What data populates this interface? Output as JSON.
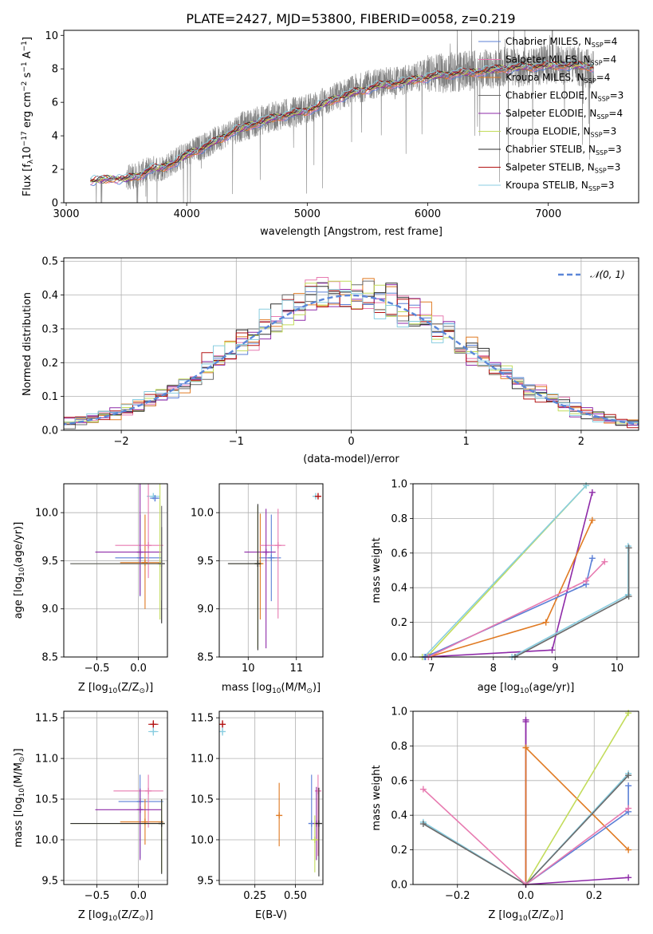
{
  "title": "PLATE=2427, MJD=53800, FIBERID=0058, z=0.219",
  "colors": {
    "chabrier_miles": "#5b7fd6",
    "salpeter_miles": "#e77ab0",
    "kroupa_miles": "#e07a22",
    "chabrier_elodie": "#6b6b6b",
    "salpeter_elodie": "#8e2aa8",
    "kroupa_elodie": "#c2dc5a",
    "chabrier_stelib": "#2e2e2e",
    "salpeter_stelib": "#b31313",
    "kroupa_stelib": "#88cde0",
    "data": "#808080",
    "normal": "#5b86d8"
  },
  "chart_data": [
    {
      "id": "spectrum",
      "type": "line",
      "title": "PLATE=2427, MJD=53800, FIBERID=0058, z=0.219",
      "xlabel": "wavelength [Angstrom, rest frame]",
      "ylabel_parts": [
        "Flux [f",
        "λ",
        "10",
        "−17",
        " erg cm",
        "−2",
        " s",
        "−1",
        " A",
        "−1",
        "]"
      ],
      "xlim": [
        2980,
        7750
      ],
      "ylim": [
        0,
        10.3
      ],
      "xticks": [
        3000,
        4000,
        5000,
        6000,
        7000
      ],
      "yticks": [
        0,
        2,
        4,
        6,
        8,
        10
      ],
      "legend_placement": "right",
      "legend": [
        {
          "label": "Chabrier MILES, N",
          "sub": "SSP",
          "tail": "=4",
          "color": "#5b7fd6"
        },
        {
          "label": "Salpeter MILES, N",
          "sub": "SSP",
          "tail": "=4",
          "color": "#e77ab0"
        },
        {
          "label": "Kroupa MILES, N",
          "sub": "SSP",
          "tail": "=4",
          "color": "#e07a22"
        },
        {
          "label": "Chabrier ELODIE, N",
          "sub": "SSP",
          "tail": "=3",
          "color": "#6b6b6b"
        },
        {
          "label": "Salpeter ELODIE, N",
          "sub": "SSP",
          "tail": "=4",
          "color": "#8e2aa8"
        },
        {
          "label": "Kroupa ELODIE, N",
          "sub": "SSP",
          "tail": "=3",
          "color": "#c2dc5a"
        },
        {
          "label": "Chabrier STELIB, N",
          "sub": "SSP",
          "tail": "=3",
          "color": "#2e2e2e"
        },
        {
          "label": "Salpeter STELIB, N",
          "sub": "SSP",
          "tail": "=3",
          "color": "#b31313"
        },
        {
          "label": "Kroupa STELIB, N",
          "sub": "SSP",
          "tail": "=3",
          "color": "#88cde0"
        }
      ],
      "data_continuum": {
        "x": [
          3200,
          3400,
          3500,
          3600,
          3700,
          3800,
          3900,
          4000,
          4200,
          4400,
          4600,
          4800,
          5000,
          5200,
          5400,
          5600,
          5800,
          6000,
          6200,
          6400,
          6600,
          6800,
          7000,
          7200,
          7380
        ],
        "y": [
          1.3,
          1.45,
          1.5,
          1.7,
          2.0,
          2.1,
          2.5,
          2.9,
          3.6,
          4.4,
          4.9,
          5.3,
          5.6,
          6.2,
          6.8,
          7.2,
          7.3,
          7.7,
          7.8,
          7.9,
          8.1,
          8.1,
          8.3,
          8.2,
          8.0
        ]
      },
      "model_continuum": {
        "x": [
          3200,
          3400,
          3500,
          3600,
          3700,
          3800,
          3900,
          4000,
          4200,
          4400,
          4600,
          4800,
          5000,
          5200,
          5400,
          5600,
          5800,
          6000,
          6200,
          6400,
          6600,
          6800,
          7000,
          7200,
          7380
        ],
        "y": [
          1.3,
          1.45,
          1.4,
          1.6,
          2.0,
          2.1,
          2.4,
          2.85,
          3.5,
          4.3,
          4.8,
          5.2,
          5.5,
          6.1,
          6.6,
          7.0,
          7.2,
          7.5,
          7.7,
          7.8,
          8.0,
          8.1,
          8.2,
          8.2,
          8.1
        ]
      }
    },
    {
      "id": "residuals",
      "type": "line",
      "xlabel": "(data-model)/error",
      "ylabel": "Normed distribution",
      "xlim": [
        -2.5,
        2.5
      ],
      "ylim": [
        0,
        0.51
      ],
      "xticks": [
        -2,
        -1,
        0,
        1,
        2
      ],
      "yticks": [
        0.0,
        0.1,
        0.2,
        0.3,
        0.4,
        0.5
      ],
      "legend": [
        {
          "label": "𝒩(0, 1)",
          "color": "#5b86d8"
        }
      ],
      "legend_placement": "top-right",
      "bin_width": 0.1
    },
    {
      "id": "age_vs_Z",
      "type": "scatter",
      "xlabel": "Z [log10(Z/Z⊙)]",
      "xlabel_parts": [
        "Z [log",
        "10",
        "(Z/Z",
        "⊙",
        ")]"
      ],
      "ylabel": "age [log10(age/yr)]",
      "ylabel_parts": [
        "age  [log",
        "10",
        "(age/yr)]"
      ],
      "xlim": [
        -0.9,
        0.35
      ],
      "ylim": [
        8.5,
        10.3
      ],
      "xticks": [
        -0.5,
        0.0
      ],
      "yticks": [
        8.5,
        9.0,
        9.5,
        10.0
      ],
      "points": [
        {
          "x": 0.18,
          "y": 10.17,
          "color": "#88cde0",
          "xerr": [
            0.08,
            0.08
          ],
          "yerr": [
            0,
            0
          ]
        },
        {
          "x": 0.2,
          "y": 10.15,
          "color": "#5b7fd6",
          "xerr": [
            0.06,
            0.06
          ],
          "yerr": [
            0,
            0
          ]
        },
        {
          "x": 0.02,
          "y": 9.53,
          "color": "#5b7fd6",
          "xerr": [
            0.3,
            0.26
          ],
          "yerr": [
            0.4,
            0.45
          ]
        },
        {
          "x": 0.08,
          "y": 9.48,
          "color": "#e07a22",
          "xerr": [
            0.3,
            0.2
          ],
          "yerr": [
            0.48,
            0.5
          ]
        },
        {
          "x": 0.12,
          "y": 9.66,
          "color": "#e77ab0",
          "xerr": [
            0.4,
            0.18
          ],
          "yerr": [
            0.34,
            0.74
          ]
        },
        {
          "x": 0.02,
          "y": 9.59,
          "color": "#8e2aa8",
          "xerr": [
            0.54,
            0.26
          ],
          "yerr": [
            0.45,
            1.0
          ]
        },
        {
          "x": 0.26,
          "y": 9.47,
          "color": "#c2dc5a",
          "xerr": [
            1.06,
            0.02
          ],
          "yerr": [
            0.58,
            0.88
          ]
        },
        {
          "x": 0.28,
          "y": 9.47,
          "color": "#2e2e2e",
          "xerr": [
            1.1,
            0.02
          ],
          "yerr": [
            0.62,
            0.38
          ]
        },
        {
          "x": 0.28,
          "y": 9.47,
          "color": "#6b6b6b",
          "xerr": [
            1.1,
            0.02
          ],
          "yerr": [
            0.38,
            0.6
          ]
        }
      ]
    },
    {
      "id": "age_vs_mass",
      "type": "scatter",
      "xlabel": "mass [log10(M/M⊙)]",
      "xlabel_parts": [
        "mass [log",
        "10",
        "(M/M",
        "⊙",
        ")]"
      ],
      "ylabel": "",
      "xlim": [
        9.4,
        11.55
      ],
      "ylim": [
        8.5,
        10.3
      ],
      "xticks": [
        10,
        11
      ],
      "yticks": [
        8.5,
        9.0,
        9.5,
        10.0
      ],
      "points": [
        {
          "x": 11.4,
          "y": 10.17,
          "color": "#88cde0",
          "xerr": [
            0.05,
            0.05
          ],
          "yerr": [
            0,
            0
          ]
        },
        {
          "x": 11.45,
          "y": 10.17,
          "color": "#b31313",
          "xerr": [
            0.05,
            0.05
          ],
          "yerr": [
            0,
            0
          ]
        },
        {
          "x": 10.48,
          "y": 9.53,
          "color": "#5b7fd6",
          "xerr": [
            0.25,
            0.2
          ],
          "yerr": [
            0.45,
            0.45
          ]
        },
        {
          "x": 10.25,
          "y": 9.47,
          "color": "#e07a22",
          "xerr": [
            0.0,
            0.0
          ],
          "yerr": [
            0.58,
            0.52
          ]
        },
        {
          "x": 10.62,
          "y": 9.66,
          "color": "#e77ab0",
          "xerr": [
            0.38,
            0.15
          ],
          "yerr": [
            0.76,
            0.38
          ]
        },
        {
          "x": 10.37,
          "y": 9.59,
          "color": "#8e2aa8",
          "xerr": [
            0.45,
            0.2
          ],
          "yerr": [
            1.0,
            0.45
          ]
        },
        {
          "x": 10.2,
          "y": 9.47,
          "color": "#c2dc5a",
          "xerr": [
            0.6,
            0.05
          ],
          "yerr": [
            0.88,
            0.6
          ]
        },
        {
          "x": 10.2,
          "y": 9.47,
          "color": "#2e2e2e",
          "xerr": [
            0.62,
            0.05
          ],
          "yerr": [
            0.9,
            0.62
          ]
        }
      ]
    },
    {
      "id": "mass_weight_vs_age",
      "type": "line",
      "xlabel": "age [log10(age/yr)]",
      "xlabel_parts": [
        "age  [log",
        "10",
        "(age/yr)]"
      ],
      "ylabel": "mass weight",
      "xlim": [
        6.7,
        10.35
      ],
      "ylim": [
        0,
        1.0
      ],
      "xticks": [
        7,
        8,
        9,
        10
      ],
      "yticks": [
        0.0,
        0.2,
        0.4,
        0.6,
        0.8,
        1.0
      ],
      "series": [
        {
          "color": "#c2dc5a",
          "x": [
            6.85,
            6.95,
            9.5
          ],
          "y": [
            0.0,
            0.01,
            0.99
          ]
        },
        {
          "color": "#88cde0",
          "x": [
            6.88,
            9.5
          ],
          "y": [
            0.0,
            0.99
          ]
        },
        {
          "color": "#8e2aa8",
          "x": [
            6.9,
            8.95,
            9.6
          ],
          "y": [
            0.0,
            0.04,
            0.95
          ]
        },
        {
          "color": "#e07a22",
          "x": [
            6.95,
            8.85,
            9.6
          ],
          "y": [
            0.0,
            0.2,
            0.79
          ]
        },
        {
          "color": "#5b7fd6",
          "x": [
            6.9,
            9.5,
            9.6
          ],
          "y": [
            0.0,
            0.42,
            0.57
          ]
        },
        {
          "color": "#e77ab0",
          "x": [
            6.95,
            9.5,
            9.8
          ],
          "y": [
            0.0,
            0.44,
            0.55
          ]
        },
        {
          "color": "#88cde0",
          "x": [
            8.3,
            10.18,
            10.18
          ],
          "y": [
            0.0,
            0.36,
            0.64
          ]
        },
        {
          "color": "#6b6b6b",
          "x": [
            8.35,
            10.19,
            10.19
          ],
          "y": [
            0.0,
            0.35,
            0.63
          ]
        }
      ]
    },
    {
      "id": "mass_vs_Z",
      "type": "scatter",
      "xlabel": "Z [log10(Z/Z⊙)]",
      "xlabel_parts": [
        "Z [log",
        "10",
        "(Z/Z",
        "⊙",
        ")]"
      ],
      "ylabel": "mass [log10(M/M⊙)]",
      "ylabel_parts": [
        "mass [log",
        "10",
        "(M/M",
        "⊙",
        ")]"
      ],
      "xlim": [
        -0.9,
        0.35
      ],
      "ylim": [
        9.45,
        11.58
      ],
      "xticks": [
        -0.5,
        0.0
      ],
      "yticks": [
        9.5,
        10.0,
        10.5,
        11.0,
        11.5
      ],
      "points": [
        {
          "x": 0.18,
          "y": 11.42,
          "color": "#b31313",
          "xerr": [
            0.06,
            0.06
          ],
          "yerr": [
            0.05,
            0.05
          ]
        },
        {
          "x": 0.18,
          "y": 11.33,
          "color": "#88cde0",
          "xerr": [
            0.06,
            0.06
          ],
          "yerr": [
            0.05,
            0.05
          ]
        },
        {
          "x": 0.02,
          "y": 10.47,
          "color": "#5b7fd6",
          "xerr": [
            0.26,
            0.28
          ],
          "yerr": [
            0.7,
            0.33
          ]
        },
        {
          "x": 0.08,
          "y": 10.22,
          "color": "#e07a22",
          "xerr": [
            0.3,
            0.22
          ],
          "yerr": [
            0.28,
            0.28
          ]
        },
        {
          "x": 0.12,
          "y": 10.6,
          "color": "#e77ab0",
          "xerr": [
            0.42,
            0.18
          ],
          "yerr": [
            0.45,
            0.2
          ]
        },
        {
          "x": 0.02,
          "y": 10.37,
          "color": "#8e2aa8",
          "xerr": [
            0.54,
            0.26
          ],
          "yerr": [
            0.62,
            0.26
          ]
        },
        {
          "x": 0.28,
          "y": 10.2,
          "color": "#c2dc5a",
          "xerr": [
            1.1,
            0.02
          ],
          "yerr": [
            0.6,
            0.3
          ]
        },
        {
          "x": 0.28,
          "y": 10.2,
          "color": "#2e2e2e",
          "xerr": [
            1.1,
            0.02
          ],
          "yerr": [
            0.62,
            0.3
          ]
        }
      ]
    },
    {
      "id": "mass_vs_ebv",
      "type": "scatter",
      "xlabel": "E(B-V)",
      "ylabel": "",
      "xlim": [
        0.03,
        0.67
      ],
      "ylim": [
        9.45,
        11.58
      ],
      "xticks": [
        0.25,
        0.5
      ],
      "xtick_labels": [
        "0.25",
        "0.50"
      ],
      "yticks": [
        9.5,
        10.0,
        10.5,
        11.0,
        11.5
      ],
      "points": [
        {
          "x": 0.05,
          "y": 11.42,
          "color": "#b31313",
          "xerr": [
            0,
            0
          ],
          "yerr": [
            0.05,
            0.05
          ]
        },
        {
          "x": 0.05,
          "y": 11.33,
          "color": "#88cde0",
          "xerr": [
            0,
            0
          ],
          "yerr": [
            0.05,
            0.05
          ]
        },
        {
          "x": 0.6,
          "y": 10.2,
          "color": "#5b7fd6",
          "xerr": [
            0,
            0
          ],
          "yerr": [
            0.2,
            0.6
          ]
        },
        {
          "x": 0.4,
          "y": 10.3,
          "color": "#e07a22",
          "xerr": [
            0,
            0
          ],
          "yerr": [
            0.38,
            0.4
          ]
        },
        {
          "x": 0.64,
          "y": 10.6,
          "color": "#e77ab0",
          "xerr": [
            0,
            0
          ],
          "yerr": [
            0.8,
            0.2
          ]
        },
        {
          "x": 0.63,
          "y": 10.2,
          "color": "#8e2aa8",
          "xerr": [
            0,
            0
          ],
          "yerr": [
            0.45,
            0.45
          ]
        },
        {
          "x": 0.62,
          "y": 10.0,
          "color": "#c2dc5a",
          "xerr": [
            0,
            0
          ],
          "yerr": [
            0.4,
            0.3
          ]
        },
        {
          "x": 0.645,
          "y": 10.2,
          "color": "#2e2e2e",
          "xerr": [
            0,
            0
          ],
          "yerr": [
            0.65,
            0.44
          ]
        }
      ]
    },
    {
      "id": "mass_weight_vs_Z",
      "type": "line",
      "xlabel": "Z [log10(Z/Z⊙)]",
      "xlabel_parts": [
        "Z [log",
        "10",
        "(Z/Z",
        "⊙",
        ")]"
      ],
      "ylabel": "mass weight",
      "xlim": [
        -0.33,
        0.33
      ],
      "ylim": [
        0,
        1.0
      ],
      "xticks": [
        -0.2,
        0.0,
        0.2,
        0.4
      ],
      "xtick_labels": [
        "−0.2",
        "0.0",
        "0.2",
        ""
      ],
      "yticks": [
        0.0,
        0.2,
        0.4,
        0.6,
        0.8,
        1.0
      ],
      "series": [
        {
          "color": "#8e2aa8",
          "x": [
            0.0,
            0.0,
            0.3
          ],
          "y": [
            0.95,
            0.0,
            0.04
          ]
        },
        {
          "color": "#8e2aa8",
          "x": [
            0.0,
            0.0
          ],
          "y": [
            0.0,
            0.94
          ]
        },
        {
          "color": "#e07a22",
          "x": [
            0.0,
            0.3
          ],
          "y": [
            0.79,
            0.2
          ]
        },
        {
          "color": "#e07a22",
          "x": [
            0.0,
            0.0
          ],
          "y": [
            0.0,
            0.79
          ]
        },
        {
          "color": "#c2dc5a",
          "x": [
            0.0,
            0.3
          ],
          "y": [
            0.0,
            0.99
          ]
        },
        {
          "color": "#88cde0",
          "x": [
            -0.3,
            0.0,
            0.3
          ],
          "y": [
            0.36,
            0.0,
            0.64
          ]
        },
        {
          "color": "#6b6b6b",
          "x": [
            -0.3,
            0.0,
            0.3
          ],
          "y": [
            0.35,
            0.0,
            0.63
          ]
        },
        {
          "color": "#5b7fd6",
          "x": [
            0.0,
            0.3,
            0.3
          ],
          "y": [
            0.0,
            0.42,
            0.57
          ]
        },
        {
          "color": "#e77ab0",
          "x": [
            -0.3,
            0.0,
            0.3
          ],
          "y": [
            0.55,
            0.0,
            0.44
          ]
        }
      ]
    }
  ]
}
